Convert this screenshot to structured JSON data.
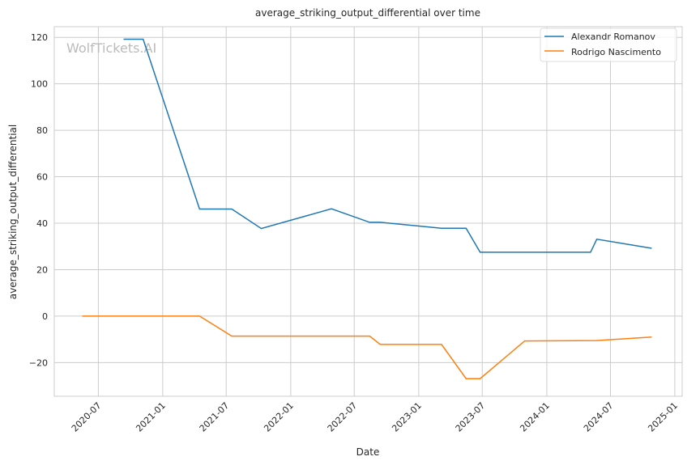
{
  "chart_data": {
    "type": "line",
    "title": "average_striking_output_differential over time",
    "xlabel": "Date",
    "ylabel": "average_striking_output_differential",
    "watermark": "WolfTickets.AI",
    "xlim": [
      "2020-02-26",
      "2025-01-22"
    ],
    "ylim": [
      -34.5,
      124.6
    ],
    "grid": true,
    "legend_position": "top-right",
    "x_ticks": [
      "2020-07",
      "2021-01",
      "2021-07",
      "2022-01",
      "2022-07",
      "2023-01",
      "2023-07",
      "2024-01",
      "2024-07",
      "2025-01"
    ],
    "y_ticks": [
      -20,
      0,
      20,
      40,
      60,
      80,
      100,
      120
    ],
    "series": [
      {
        "name": "Alexandr Romanov",
        "color": "#1f77b4",
        "x": [
          "2020-09-11",
          "2020-11-06",
          "2021-04-16",
          "2021-07-17",
          "2021-10-09",
          "2022-04-27",
          "2022-08-14",
          "2022-09-13",
          "2023-03-07",
          "2023-05-16",
          "2023-06-25",
          "2024-05-05",
          "2024-05-23",
          "2024-10-27"
        ],
        "y": [
          119.2,
          119.2,
          46.1,
          46.1,
          37.7,
          46.2,
          40.4,
          40.4,
          37.8,
          37.8,
          27.5,
          27.5,
          33.1,
          29.2
        ]
      },
      {
        "name": "Rodrigo Nascimento",
        "color": "#ff7f0e",
        "x": [
          "2020-05-16",
          "2021-04-16",
          "2021-07-17",
          "2022-08-14",
          "2022-09-13",
          "2023-03-07",
          "2023-05-16",
          "2023-06-25",
          "2023-10-30",
          "2024-05-23",
          "2024-10-27"
        ],
        "y": [
          0,
          0,
          -8.6,
          -8.6,
          -12.2,
          -12.2,
          -26.9,
          -26.9,
          -10.7,
          -10.5,
          -9.0
        ]
      }
    ]
  }
}
